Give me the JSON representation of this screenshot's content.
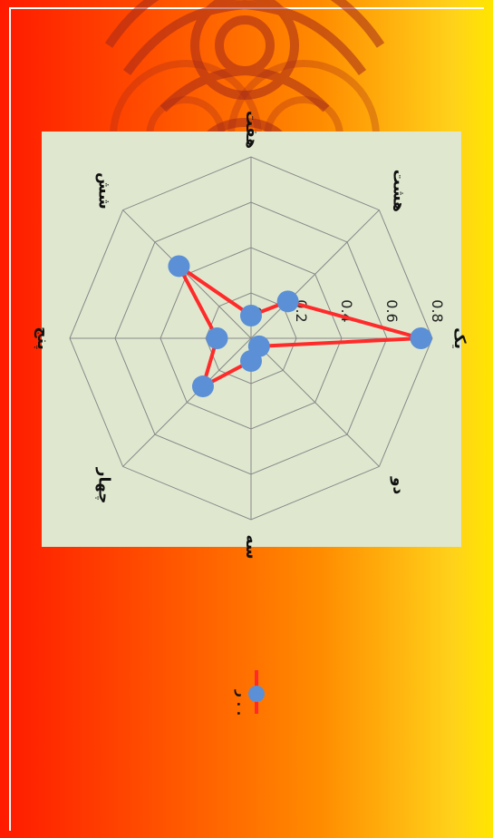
{
  "chart_data": {
    "type": "radar",
    "title": "",
    "categories": [
      "یک",
      "دو",
      "سه",
      "چهار",
      "پنج",
      "شش",
      "هفت",
      "هشت"
    ],
    "series": [
      {
        "name": "ر . .",
        "values": [
          0.75,
          0.05,
          0.1,
          0.3,
          0.15,
          0.45,
          0.1,
          0.23
        ]
      }
    ],
    "rlim": [
      0,
      0.8
    ],
    "rticks": [
      0,
      0.2,
      0.4,
      0.6,
      0.8
    ],
    "rtick_labels": [
      "0",
      "0.2",
      "0.4",
      "0.6",
      "0.8"
    ],
    "grid": true,
    "legend": "bottom",
    "colors": {
      "line": "#ff2a2a",
      "marker": "#5b8fd6",
      "plot_bg": "#dfe8cf",
      "grid": "#888888"
    }
  }
}
